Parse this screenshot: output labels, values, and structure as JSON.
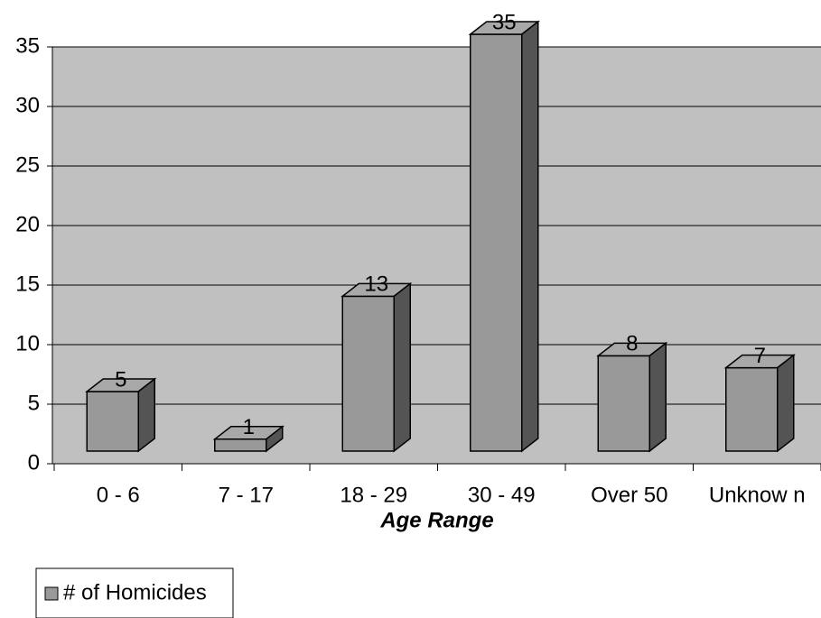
{
  "chart_data": {
    "type": "bar3d",
    "xlabel": "Age Range",
    "categories": [
      "0 - 6",
      "7 - 17",
      "18 - 29",
      "30 - 49",
      "Over 50",
      "Unknow n"
    ],
    "series": [
      {
        "name": "# of Homicides",
        "color": "#999999",
        "values": [
          5,
          1,
          13,
          35,
          8,
          7
        ]
      }
    ],
    "ylim": [
      0,
      35
    ],
    "yticks": [
      0,
      5,
      10,
      15,
      20,
      25,
      30,
      35
    ],
    "grid": true,
    "legend": "bottom-left"
  }
}
